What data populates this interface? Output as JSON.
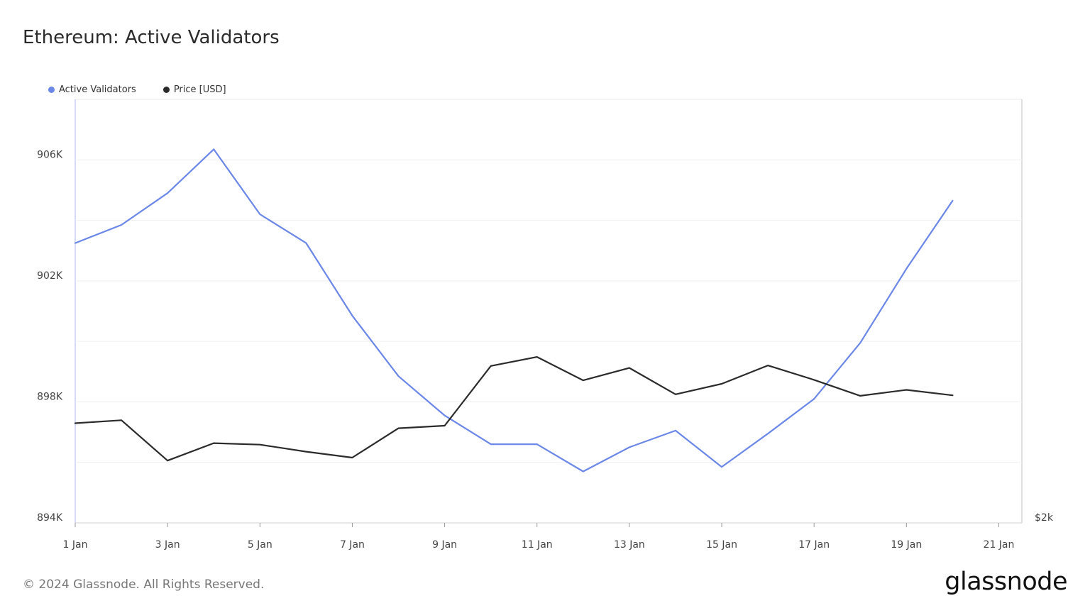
{
  "title": "Ethereum: Active Validators",
  "legend": [
    {
      "label": "Active Validators",
      "color": "#6b87e8"
    },
    {
      "label": "Price [USD]",
      "color": "#2b2b2b"
    }
  ],
  "footer": {
    "copyright": "© 2024 Glassnode. All Rights Reserved.",
    "brand": "glassnode"
  },
  "chart_data": {
    "type": "line",
    "title": "Ethereum: Active Validators",
    "x_labels": [
      "1 Jan",
      "3 Jan",
      "5 Jan",
      "7 Jan",
      "9 Jan",
      "11 Jan",
      "13 Jan",
      "15 Jan",
      "17 Jan",
      "19 Jan",
      "21 Jan"
    ],
    "x_days": [
      1,
      2,
      3,
      4,
      5,
      6,
      7,
      8,
      9,
      10,
      11,
      12,
      13,
      14,
      15,
      16,
      17,
      18,
      19,
      20
    ],
    "x_range": [
      1,
      21.5
    ],
    "y_left": {
      "ticks": [
        894000,
        898000,
        902000,
        906000
      ],
      "tick_labels": [
        "894K",
        "898K",
        "902K",
        "906K"
      ],
      "range": [
        894000,
        908000
      ]
    },
    "y_right": {
      "tick_labels": [
        "$2k"
      ],
      "range": [
        2000,
        2850
      ]
    },
    "grid": true,
    "legend_position": "top-left",
    "series": [
      {
        "name": "Active Validators",
        "axis": "left",
        "color": "#6b87e8",
        "values": [
          903250,
          903850,
          904900,
          906350,
          904200,
          903250,
          900850,
          898850,
          897550,
          896600,
          896600,
          895700,
          896500,
          897050,
          895850,
          896950,
          898100,
          899950,
          902400,
          904650
        ]
      },
      {
        "name": "Price [USD]",
        "axis": "right",
        "color": "#2b2b2b",
        "values": [
          2200,
          2206,
          2125,
          2160,
          2157,
          2143,
          2131,
          2190,
          2195,
          2315,
          2333,
          2286,
          2311,
          2258,
          2279,
          2316,
          2287,
          2255,
          2267,
          2256
        ]
      }
    ]
  }
}
